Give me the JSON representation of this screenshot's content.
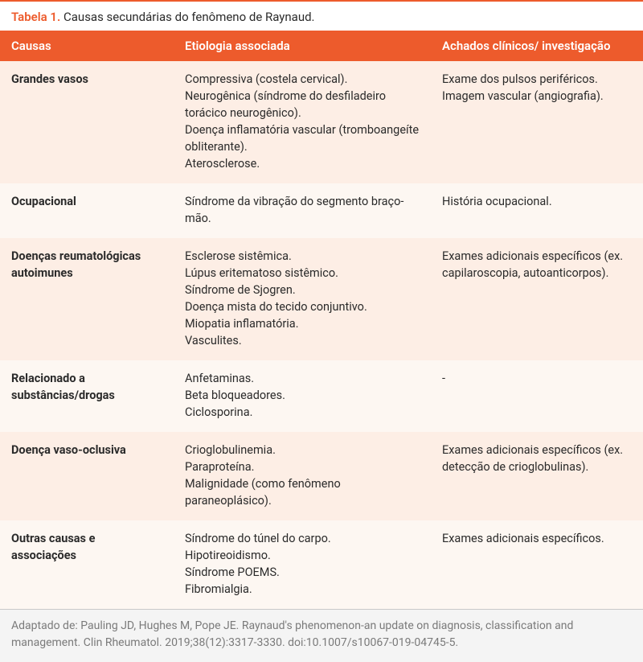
{
  "caption_label": "Tabela 1.",
  "caption_text": "Causas secundárias do fenômeno de Raynaud.",
  "col_widths_pct": [
    27,
    40,
    33
  ],
  "columns": [
    "Causas",
    "Etiologia associada",
    "Achados clínicos/ investigação"
  ],
  "colors": {
    "accent": "#ed5b2c",
    "row_odd_bg": "#fdeee5",
    "row_even_bg": "#fdf7f2",
    "footer_bg": "#f4f4f4",
    "footer_border": "#c9c9c9",
    "text": "#2b2b2b",
    "footer_text": "#7a7a7a",
    "header_text": "#ffffff"
  },
  "font": {
    "caption_size_pt": 15,
    "header_size_pt": 15,
    "body_size_pt": 14.5,
    "footer_size_pt": 14,
    "line_height": 1.45
  },
  "rows": [
    {
      "cause": "Grandes vasos",
      "etiology": [
        "Compressiva (costela cervical).",
        "Neurogênica (síndrome do desfiladeiro torácico neurogênico).",
        "Doença inflamatória vascular (tromboangeíte obliterante).",
        "Aterosclerose."
      ],
      "findings": [
        "Exame dos pulsos periféricos.",
        "Imagem vascular (angiografia)."
      ]
    },
    {
      "cause": "Ocupacional",
      "etiology": [
        "Síndrome da vibração do segmento braço-mão."
      ],
      "findings": [
        "História ocupacional."
      ]
    },
    {
      "cause": "Doenças reumatológicas autoimunes",
      "etiology": [
        "Esclerose sistêmica.",
        "Lúpus eritematoso sistêmico.",
        "Síndrome de Sjogren.",
        "Doença mista do tecido conjuntivo.",
        "Miopatia inflamatória.",
        "Vasculites."
      ],
      "findings": [
        "Exames adicionais específicos (ex. capilaroscopia, autoanticorpos)."
      ]
    },
    {
      "cause": "Relacionado a substâncias/drogas",
      "etiology": [
        "Anfetaminas.",
        "Beta bloqueadores.",
        "Ciclosporina."
      ],
      "findings": [
        "-"
      ]
    },
    {
      "cause": "Doença vaso-oclusiva",
      "etiology": [
        "Crioglobulinemia.",
        "Paraproteína.",
        "Malignidade (como fenômeno paraneoplásico)."
      ],
      "findings": [
        "Exames adicionais específicos (ex. detecção de crioglobulinas)."
      ]
    },
    {
      "cause": "Outras causas e associações",
      "etiology": [
        "Síndrome do túnel do carpo.",
        "Hipotireoidismo.",
        "Síndrome POEMS.",
        "Fibromialgia."
      ],
      "findings": [
        "Exames adicionais específicos."
      ]
    }
  ],
  "footer": "Adaptado de: Pauling JD, Hughes M, Pope JE. Raynaud's phenomenon-an update on diagnosis, classification and management. Clin Rheumatol. 2019;38(12):3317-3330. doi:10.1007/s10067-019-04745-5."
}
